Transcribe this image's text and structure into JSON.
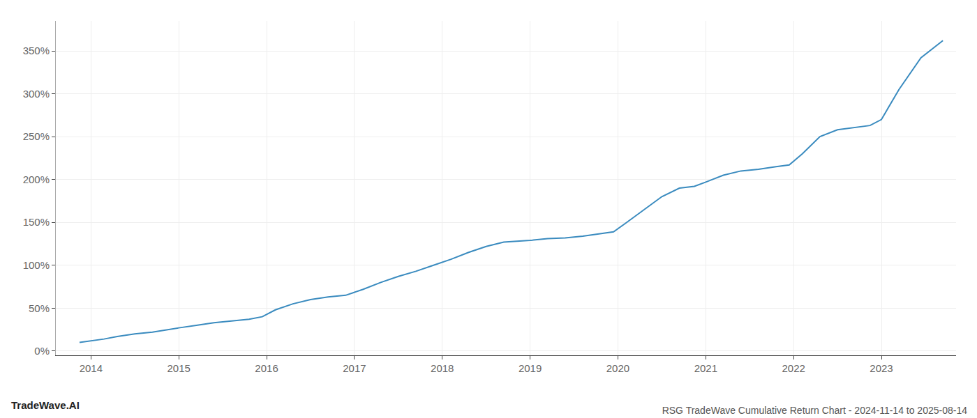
{
  "chart_data": {
    "type": "line",
    "title": "RSG TradeWave Cumulative Return Chart - 2024-11-14 to 2025-08-14",
    "annotations": [
      "TradeWave.AI"
    ],
    "color": "#3a8bbf",
    "grid": true,
    "x": [
      2013.87,
      2014.0,
      2014.15,
      2014.3,
      2014.5,
      2014.7,
      2014.87,
      2015.0,
      2015.2,
      2015.4,
      2015.6,
      2015.8,
      2015.95,
      2016.1,
      2016.3,
      2016.5,
      2016.7,
      2016.9,
      2017.1,
      2017.3,
      2017.5,
      2017.7,
      2017.9,
      2018.1,
      2018.3,
      2018.5,
      2018.7,
      2018.87,
      2019.0,
      2019.2,
      2019.4,
      2019.6,
      2019.8,
      2019.95,
      2020.1,
      2020.3,
      2020.5,
      2020.7,
      2020.87,
      2021.0,
      2021.2,
      2021.4,
      2021.6,
      2021.8,
      2021.95,
      2022.1,
      2022.3,
      2022.5,
      2022.7,
      2022.87,
      2023.0,
      2023.2,
      2023.45,
      2023.7
    ],
    "values": [
      0.1,
      0.12,
      0.14,
      0.17,
      0.2,
      0.22,
      0.25,
      0.27,
      0.3,
      0.33,
      0.35,
      0.37,
      0.4,
      0.48,
      0.55,
      0.6,
      0.63,
      0.65,
      0.72,
      0.8,
      0.87,
      0.93,
      1.0,
      1.07,
      1.15,
      1.22,
      1.27,
      1.28,
      1.29,
      1.31,
      1.32,
      1.34,
      1.37,
      1.39,
      1.5,
      1.65,
      1.8,
      1.9,
      1.92,
      1.97,
      2.05,
      2.1,
      2.12,
      2.15,
      2.17,
      2.3,
      2.5,
      2.58,
      2.61,
      2.63,
      2.7,
      3.05,
      3.42,
      3.62
    ],
    "xlim": [
      2013.6,
      2023.85
    ],
    "xticks": [
      2014,
      2015,
      2016,
      2017,
      2018,
      2019,
      2020,
      2021,
      2022,
      2023
    ],
    "ylim": [
      -0.05,
      3.85
    ],
    "yticks": [
      {
        "value": 0.0,
        "label": "0%"
      },
      {
        "value": 0.5,
        "label": "50%"
      },
      {
        "value": 1.0,
        "label": "100%"
      },
      {
        "value": 1.5,
        "label": "150%"
      },
      {
        "value": 2.0,
        "label": "200%"
      },
      {
        "value": 2.5,
        "label": "250%"
      },
      {
        "value": 3.0,
        "label": "300%"
      },
      {
        "value": 3.5,
        "label": "350%"
      }
    ]
  }
}
